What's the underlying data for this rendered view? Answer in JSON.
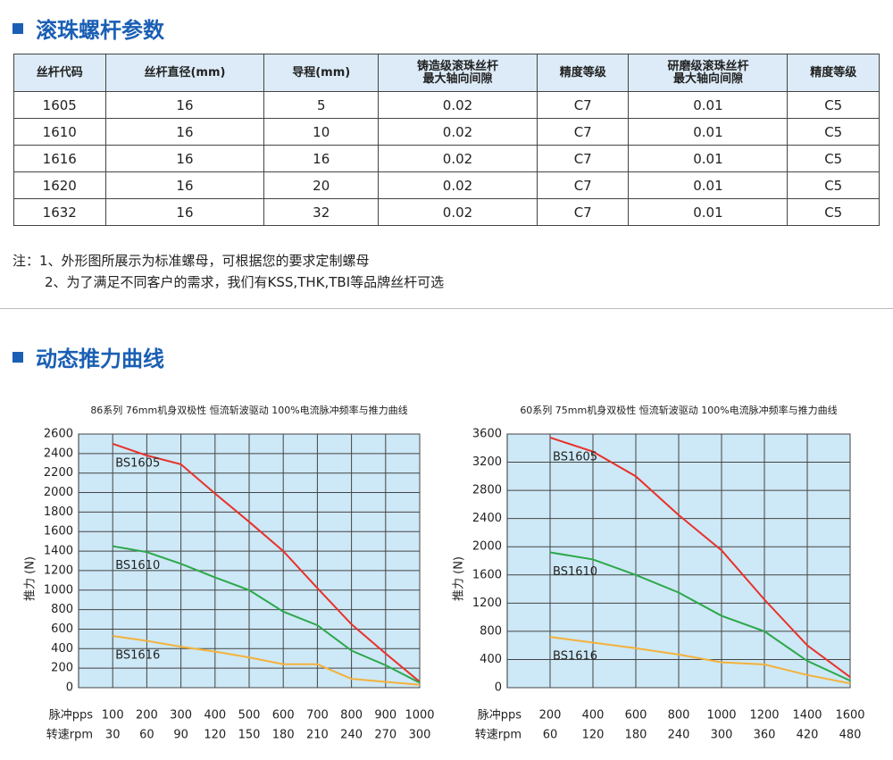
{
  "section1_title": "滚珠螺杆参数",
  "table": {
    "header": [
      [
        "丝杆代码"
      ],
      [
        "丝杆直径(mm)"
      ],
      [
        "导程(mm)"
      ],
      [
        "铸造级滚珠丝杆",
        "最大轴向间隙"
      ],
      [
        "精度等级"
      ],
      [
        "研磨级滚珠丝杆",
        "最大轴向间隙"
      ],
      [
        "精度等级"
      ]
    ],
    "rows": [
      [
        "1605",
        "16",
        "5",
        "0.02",
        "C7",
        "0.01",
        "C5"
      ],
      [
        "1610",
        "16",
        "10",
        "0.02",
        "C7",
        "0.01",
        "C5"
      ],
      [
        "1616",
        "16",
        "16",
        "0.02",
        "C7",
        "0.01",
        "C5"
      ],
      [
        "1620",
        "16",
        "20",
        "0.02",
        "C7",
        "0.01",
        "C5"
      ],
      [
        "1632",
        "16",
        "32",
        "0.02",
        "C7",
        "0.01",
        "C5"
      ]
    ]
  },
  "notes": {
    "prefix": "注：",
    "items": [
      "1、外形图所展示为标准螺母，可根据您的要求定制螺母",
      "2、为了满足不同客户的需求，我们有KSS,THK,TBI等品牌丝杆可选"
    ]
  },
  "section2_title": "动态推力曲线",
  "chart_data": [
    {
      "type": "line",
      "title": "86系列 76mm机身双极性 恒流斩波驱动 100%电流脉冲频率与推力曲线",
      "y_label": "推力 (N)",
      "x_label": "脉冲pps",
      "x2_label": "转速rpm",
      "x": [
        100,
        200,
        300,
        400,
        500,
        600,
        700,
        800,
        900,
        1000
      ],
      "xlim": [
        0,
        1000
      ],
      "xticks": [
        100,
        200,
        300,
        400,
        500,
        600,
        700,
        800,
        900,
        1000
      ],
      "x2lim": [
        0,
        300
      ],
      "x2ticks": [
        30,
        60,
        90,
        120,
        150,
        180,
        210,
        240,
        270,
        300
      ],
      "ylim": [
        0,
        2600
      ],
      "yticks": [
        0,
        200,
        400,
        600,
        800,
        1000,
        1200,
        1400,
        1600,
        1800,
        2000,
        2200,
        2400,
        2600
      ],
      "grid": true,
      "series": [
        {
          "name": "BS1605",
          "color": "#e8312a",
          "values": [
            2500,
            2380,
            2290,
            1990,
            1700,
            1400,
            1020,
            650,
            350,
            60
          ]
        },
        {
          "name": "BS1610",
          "color": "#2ba84a",
          "values": [
            1450,
            1390,
            1270,
            1130,
            1000,
            780,
            640,
            380,
            230,
            50
          ]
        },
        {
          "name": "BS1616",
          "color": "#f4b13a",
          "values": [
            530,
            480,
            420,
            370,
            310,
            240,
            240,
            90,
            60,
            30
          ]
        }
      ]
    },
    {
      "type": "line",
      "title": "60系列 75mm机身双极性 恒流斩波驱动 100%电流脉冲频率与推力曲线",
      "y_label": "推力 (N)",
      "x_label": "脉冲pps",
      "x2_label": "转速rpm",
      "x": [
        200,
        400,
        600,
        800,
        1000,
        1200,
        1400,
        1600
      ],
      "xlim": [
        0,
        1600
      ],
      "xticks": [
        200,
        400,
        600,
        800,
        1000,
        1200,
        1400,
        1600
      ],
      "x2lim": [
        0,
        480
      ],
      "x2ticks": [
        60,
        120,
        180,
        240,
        300,
        360,
        420,
        480
      ],
      "ylim": [
        0,
        3600
      ],
      "yticks": [
        0,
        400,
        800,
        1200,
        1600,
        2000,
        2400,
        2800,
        3200,
        3600
      ],
      "grid": true,
      "series": [
        {
          "name": "BS1605",
          "color": "#e8312a",
          "values": [
            3550,
            3350,
            3000,
            2450,
            1950,
            1250,
            600,
            150
          ]
        },
        {
          "name": "BS1610",
          "color": "#2ba84a",
          "values": [
            1920,
            1820,
            1600,
            1350,
            1020,
            800,
            380,
            100
          ]
        },
        {
          "name": "BS1616",
          "color": "#f4b13a",
          "values": [
            720,
            640,
            560,
            470,
            360,
            330,
            180,
            60
          ]
        }
      ]
    }
  ]
}
